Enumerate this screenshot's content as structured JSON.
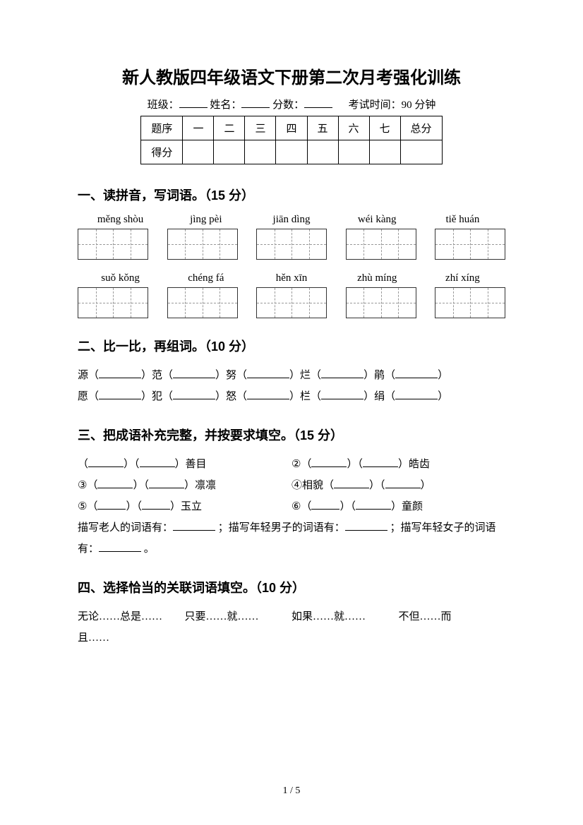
{
  "title": "新人教版四年级语文下册第二次月考强化训练",
  "info": {
    "class_label": "班级：",
    "name_label": "姓名：",
    "score_label": "分数：",
    "time_label": "考试时间：90 分钟"
  },
  "score_table": {
    "row_label": "题序",
    "score_row_label": "得分",
    "cols": [
      "一",
      "二",
      "三",
      "四",
      "五",
      "六",
      "七"
    ],
    "total": "总分"
  },
  "section1": {
    "heading": "一、读拼音，写词语。（15 分）",
    "row1": [
      "měng shòu",
      "jìng pèi",
      "jiān dìng",
      "wéi kàng",
      "tiě huán"
    ],
    "row2": [
      "suǒ kǒng",
      "chéng fá",
      "hěn xīn",
      "zhù míng",
      "zhí xíng"
    ]
  },
  "section2": {
    "heading": "二、比一比，再组词。（10 分）",
    "line1": {
      "c1": "源（",
      "c2": "）范（",
      "c3": "）努（",
      "c4": "）烂（",
      "c5": "）鹃（",
      "c6": "）"
    },
    "line2": {
      "c1": "愿（",
      "c2": "）犯（",
      "c3": "）怒（",
      "c4": "）栏（",
      "c5": "）绢（",
      "c6": "）"
    }
  },
  "section3": {
    "heading": "三、把成语补充完整，并按要求填空。（15 分）",
    "item1_suffix": "）善目",
    "item2_prefix": "②（",
    "item2_suffix": "）皓齿",
    "item3_prefix": "③（",
    "item3_suffix": "）凛凛",
    "item4_prefix": "④相貌（",
    "item5_prefix": "⑤（",
    "item5_suffix": "）玉立",
    "item6_prefix": "⑥（",
    "item6_suffix": "）童颜",
    "desc1": "描写老人的词语有：",
    "desc2": " ；描写年轻男子的词语有：",
    "desc3": " ；描写年轻女子的词语有：",
    "desc4": " 。"
  },
  "section4": {
    "heading": "四、选择恰当的关联词语填空。（10 分）",
    "opt1": "无论……总是……",
    "opt2": "只要……就……",
    "opt3": "如果……就……",
    "opt4": "不但……而",
    "opt4b": "且……"
  },
  "pager": "1 / 5"
}
